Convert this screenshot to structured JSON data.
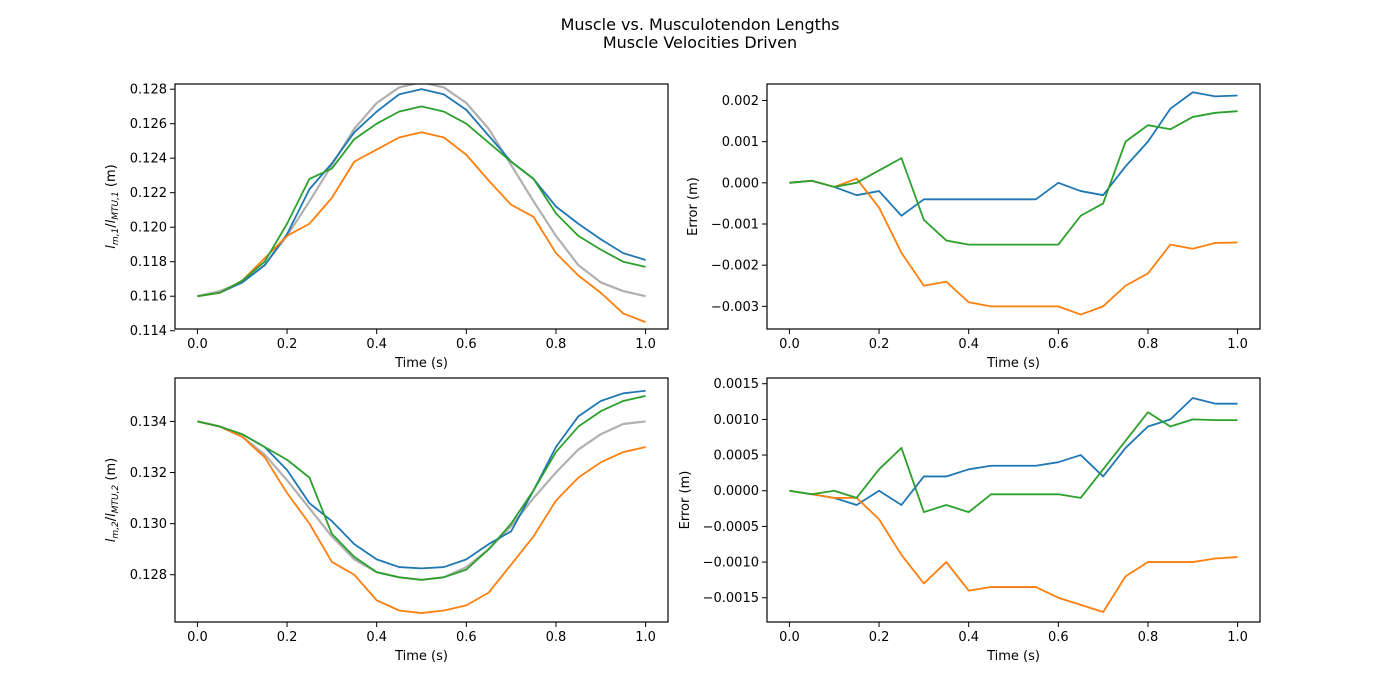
{
  "figure": {
    "title_line1": "Muscle vs. Musculotendon Lengths",
    "title_line2": "Muscle Velocities Driven"
  },
  "colors": {
    "blue": "#1f77b4",
    "orange": "#ff7f0e",
    "green": "#2ca02c",
    "gray": "#b0b0b0"
  },
  "chart_data": [
    {
      "type": "line",
      "title": "",
      "xlabel": "Time (s)",
      "ylabel": "l_{m,1}/l_{MTU,1} (m)",
      "xlim": [
        -0.05,
        1.05
      ],
      "ylim": [
        0.1141,
        0.1283
      ],
      "xticks": [
        "0.0",
        "0.2",
        "0.4",
        "0.6",
        "0.8",
        "1.0"
      ],
      "yticks": [
        "0.114",
        "0.116",
        "0.118",
        "0.120",
        "0.122",
        "0.124",
        "0.126",
        "0.128"
      ],
      "series": [
        {
          "color": "gray",
          "x": [
            0,
            0.05,
            0.1,
            0.15,
            0.2,
            0.25,
            0.3,
            0.35,
            0.4,
            0.45,
            0.5,
            0.55,
            0.6,
            0.65,
            0.7,
            0.75,
            0.8,
            0.85,
            0.9,
            0.95,
            1.0
          ],
          "y": [
            0.116,
            0.1163,
            0.1168,
            0.1178,
            0.1195,
            0.1215,
            0.1236,
            0.1257,
            0.1272,
            0.1281,
            0.1284,
            0.1281,
            0.1272,
            0.1257,
            0.1236,
            0.1215,
            0.1195,
            0.1178,
            0.1168,
            0.1163,
            0.116
          ]
        },
        {
          "color": "blue",
          "x": [
            0,
            0.05,
            0.1,
            0.15,
            0.2,
            0.25,
            0.3,
            0.35,
            0.4,
            0.45,
            0.5,
            0.55,
            0.6,
            0.65,
            0.7,
            0.75,
            0.8,
            0.85,
            0.9,
            0.95,
            1.0
          ],
          "y": [
            0.116,
            0.1162,
            0.1168,
            0.1178,
            0.1196,
            0.1222,
            0.1237,
            0.1255,
            0.1267,
            0.1277,
            0.128,
            0.1277,
            0.1268,
            0.1253,
            0.1238,
            0.1228,
            0.1212,
            0.1202,
            0.1193,
            0.1185,
            0.1181
          ]
        },
        {
          "color": "orange",
          "x": [
            0,
            0.05,
            0.1,
            0.15,
            0.2,
            0.25,
            0.3,
            0.35,
            0.4,
            0.45,
            0.5,
            0.55,
            0.6,
            0.65,
            0.7,
            0.75,
            0.8,
            0.85,
            0.9,
            0.95,
            1.0
          ],
          "y": [
            0.116,
            0.1162,
            0.1169,
            0.1182,
            0.1195,
            0.1202,
            0.1217,
            0.1238,
            0.1245,
            0.1252,
            0.1255,
            0.1252,
            0.1242,
            0.1227,
            0.1213,
            0.1206,
            0.1185,
            0.1172,
            0.1162,
            0.115,
            0.1145
          ]
        },
        {
          "color": "green",
          "x": [
            0,
            0.05,
            0.1,
            0.15,
            0.2,
            0.25,
            0.3,
            0.35,
            0.4,
            0.45,
            0.5,
            0.55,
            0.6,
            0.65,
            0.7,
            0.75,
            0.8,
            0.85,
            0.9,
            0.95,
            1.0
          ],
          "y": [
            0.116,
            0.1162,
            0.1169,
            0.118,
            0.1202,
            0.1228,
            0.1234,
            0.1251,
            0.126,
            0.1267,
            0.127,
            0.1267,
            0.126,
            0.1249,
            0.1238,
            0.1228,
            0.1208,
            0.1195,
            0.1187,
            0.118,
            0.1177
          ]
        }
      ]
    },
    {
      "type": "line",
      "title": "",
      "xlabel": "Time (s)",
      "ylabel": "Error (m)",
      "xlim": [
        -0.05,
        1.05
      ],
      "ylim": [
        -0.00355,
        0.0024
      ],
      "xticks": [
        "0.0",
        "0.2",
        "0.4",
        "0.6",
        "0.8",
        "1.0"
      ],
      "yticks": [
        "−0.003",
        "−0.002",
        "−0.001",
        "0.000",
        "0.001",
        "0.002"
      ],
      "series": [
        {
          "color": "blue",
          "x": [
            0,
            0.05,
            0.1,
            0.15,
            0.2,
            0.25,
            0.3,
            0.35,
            0.4,
            0.45,
            0.5,
            0.55,
            0.6,
            0.65,
            0.7,
            0.75,
            0.8,
            0.85,
            0.9,
            0.95,
            1.0
          ],
          "y": [
            0,
            5e-05,
            -0.0001,
            -0.0003,
            -0.0002,
            -0.0008,
            -0.0004,
            -0.0004,
            -0.0004,
            -0.0004,
            -0.0004,
            -0.0004,
            0.0,
            -0.0002,
            -0.0003,
            0.0004,
            0.001,
            0.0018,
            0.0022,
            0.0021,
            0.00212
          ]
        },
        {
          "color": "orange",
          "x": [
            0,
            0.05,
            0.1,
            0.15,
            0.2,
            0.25,
            0.3,
            0.35,
            0.4,
            0.45,
            0.5,
            0.55,
            0.6,
            0.65,
            0.7,
            0.75,
            0.8,
            0.85,
            0.9,
            0.95,
            1.0
          ],
          "y": [
            0,
            5e-05,
            -0.0001,
            0.0001,
            -0.0006,
            -0.0017,
            -0.0025,
            -0.0024,
            -0.0029,
            -0.003,
            -0.003,
            -0.003,
            -0.003,
            -0.0032,
            -0.003,
            -0.0025,
            -0.0022,
            -0.0015,
            -0.0016,
            -0.00146,
            -0.00145
          ]
        },
        {
          "color": "green",
          "x": [
            0,
            0.05,
            0.1,
            0.15,
            0.2,
            0.25,
            0.3,
            0.35,
            0.4,
            0.45,
            0.5,
            0.55,
            0.6,
            0.65,
            0.7,
            0.75,
            0.8,
            0.85,
            0.9,
            0.95,
            1.0
          ],
          "y": [
            0,
            5e-05,
            -0.0001,
            0.0,
            0.0003,
            0.0006,
            -0.0009,
            -0.0014,
            -0.0015,
            -0.0015,
            -0.0015,
            -0.0015,
            -0.0015,
            -0.0008,
            -0.0005,
            0.001,
            0.0014,
            0.0013,
            0.0016,
            0.0017,
            0.00174
          ]
        }
      ]
    },
    {
      "type": "line",
      "title": "",
      "xlabel": "Time (s)",
      "ylabel": "l_{m,2}/l_{MTU,2} (m)",
      "xlim": [
        -0.05,
        1.05
      ],
      "ylim": [
        0.12615,
        0.1357
      ],
      "xticks": [
        "0.0",
        "0.2",
        "0.4",
        "0.6",
        "0.8",
        "1.0"
      ],
      "yticks": [
        "0.128",
        "0.130",
        "0.132",
        "0.134"
      ],
      "series": [
        {
          "color": "gray",
          "x": [
            0,
            0.05,
            0.1,
            0.15,
            0.2,
            0.25,
            0.3,
            0.35,
            0.4,
            0.45,
            0.5,
            0.55,
            0.6,
            0.65,
            0.7,
            0.75,
            0.8,
            0.85,
            0.9,
            0.95,
            1.0
          ],
          "y": [
            0.134,
            0.1338,
            0.1334,
            0.1327,
            0.1317,
            0.1306,
            0.1295,
            0.1286,
            0.1281,
            0.1279,
            0.1278,
            0.1279,
            0.1283,
            0.129,
            0.1299,
            0.131,
            0.132,
            0.1329,
            0.1335,
            0.1339,
            0.134
          ]
        },
        {
          "color": "blue",
          "x": [
            0,
            0.05,
            0.1,
            0.15,
            0.2,
            0.25,
            0.3,
            0.35,
            0.4,
            0.45,
            0.5,
            0.55,
            0.6,
            0.65,
            0.7,
            0.75,
            0.8,
            0.85,
            0.9,
            0.95,
            1.0
          ],
          "y": [
            0.134,
            0.1338,
            0.1335,
            0.133,
            0.1321,
            0.1308,
            0.1301,
            0.1292,
            0.1286,
            0.1283,
            0.12825,
            0.1283,
            0.1286,
            0.1292,
            0.1297,
            0.1313,
            0.133,
            0.1342,
            0.1348,
            0.1351,
            0.1352
          ]
        },
        {
          "color": "orange",
          "x": [
            0,
            0.05,
            0.1,
            0.15,
            0.2,
            0.25,
            0.3,
            0.35,
            0.4,
            0.45,
            0.5,
            0.55,
            0.6,
            0.65,
            0.7,
            0.75,
            0.8,
            0.85,
            0.9,
            0.95,
            1.0
          ],
          "y": [
            0.134,
            0.1338,
            0.1334,
            0.1326,
            0.1312,
            0.13,
            0.1285,
            0.128,
            0.127,
            0.1266,
            0.1265,
            0.1266,
            0.1268,
            0.1273,
            0.1284,
            0.1295,
            0.1309,
            0.1318,
            0.1324,
            0.1328,
            0.133
          ]
        },
        {
          "color": "green",
          "x": [
            0,
            0.05,
            0.1,
            0.15,
            0.2,
            0.25,
            0.3,
            0.35,
            0.4,
            0.45,
            0.5,
            0.55,
            0.6,
            0.65,
            0.7,
            0.75,
            0.8,
            0.85,
            0.9,
            0.95,
            1.0
          ],
          "y": [
            0.134,
            0.1338,
            0.1335,
            0.133,
            0.1325,
            0.1318,
            0.1296,
            0.1287,
            0.1281,
            0.1279,
            0.1278,
            0.1279,
            0.1282,
            0.129,
            0.13,
            0.1313,
            0.1328,
            0.1338,
            0.1344,
            0.1348,
            0.135
          ]
        }
      ]
    },
    {
      "type": "line",
      "title": "",
      "xlabel": "Time (s)",
      "ylabel": "Error (m)",
      "xlim": [
        -0.05,
        1.05
      ],
      "ylim": [
        -0.00184,
        0.00158
      ],
      "xticks": [
        "0.0",
        "0.2",
        "0.4",
        "0.6",
        "0.8",
        "1.0"
      ],
      "yticks": [
        "−0.0015",
        "−0.0010",
        "−0.0005",
        "0.0000",
        "0.0005",
        "0.0010",
        "0.0015"
      ],
      "series": [
        {
          "color": "blue",
          "x": [
            0,
            0.05,
            0.1,
            0.15,
            0.2,
            0.25,
            0.3,
            0.35,
            0.4,
            0.45,
            0.5,
            0.55,
            0.6,
            0.65,
            0.7,
            0.75,
            0.8,
            0.85,
            0.9,
            0.95,
            1.0
          ],
          "y": [
            0,
            -5e-05,
            -0.0001,
            -0.0002,
            0.0,
            -0.0002,
            0.0002,
            0.0002,
            0.0003,
            0.00035,
            0.00035,
            0.00035,
            0.0004,
            0.0005,
            0.0002,
            0.0006,
            0.0009,
            0.001,
            0.0013,
            0.00122,
            0.00122
          ]
        },
        {
          "color": "orange",
          "x": [
            0,
            0.05,
            0.1,
            0.15,
            0.2,
            0.25,
            0.3,
            0.35,
            0.4,
            0.45,
            0.5,
            0.55,
            0.6,
            0.65,
            0.7,
            0.75,
            0.8,
            0.85,
            0.9,
            0.95,
            1.0
          ],
          "y": [
            0,
            -5e-05,
            -0.0001,
            -0.0001,
            -0.0004,
            -0.0009,
            -0.0013,
            -0.001,
            -0.0014,
            -0.00135,
            -0.00135,
            -0.00135,
            -0.0015,
            -0.0016,
            -0.0017,
            -0.0012,
            -0.001,
            -0.001,
            -0.001,
            -0.00095,
            -0.00093
          ]
        },
        {
          "color": "green",
          "x": [
            0,
            0.05,
            0.1,
            0.15,
            0.2,
            0.25,
            0.3,
            0.35,
            0.4,
            0.45,
            0.5,
            0.55,
            0.6,
            0.65,
            0.7,
            0.75,
            0.8,
            0.85,
            0.9,
            0.95,
            1.0
          ],
          "y": [
            0,
            -5e-05,
            0.0,
            -0.0001,
            0.0003,
            0.0006,
            -0.0003,
            -0.0002,
            -0.0003,
            -5e-05,
            -5e-05,
            -5e-05,
            -5e-05,
            -0.0001,
            0.0003,
            0.0007,
            0.0011,
            0.0009,
            0.001,
            0.00099,
            0.00099
          ]
        }
      ]
    }
  ]
}
